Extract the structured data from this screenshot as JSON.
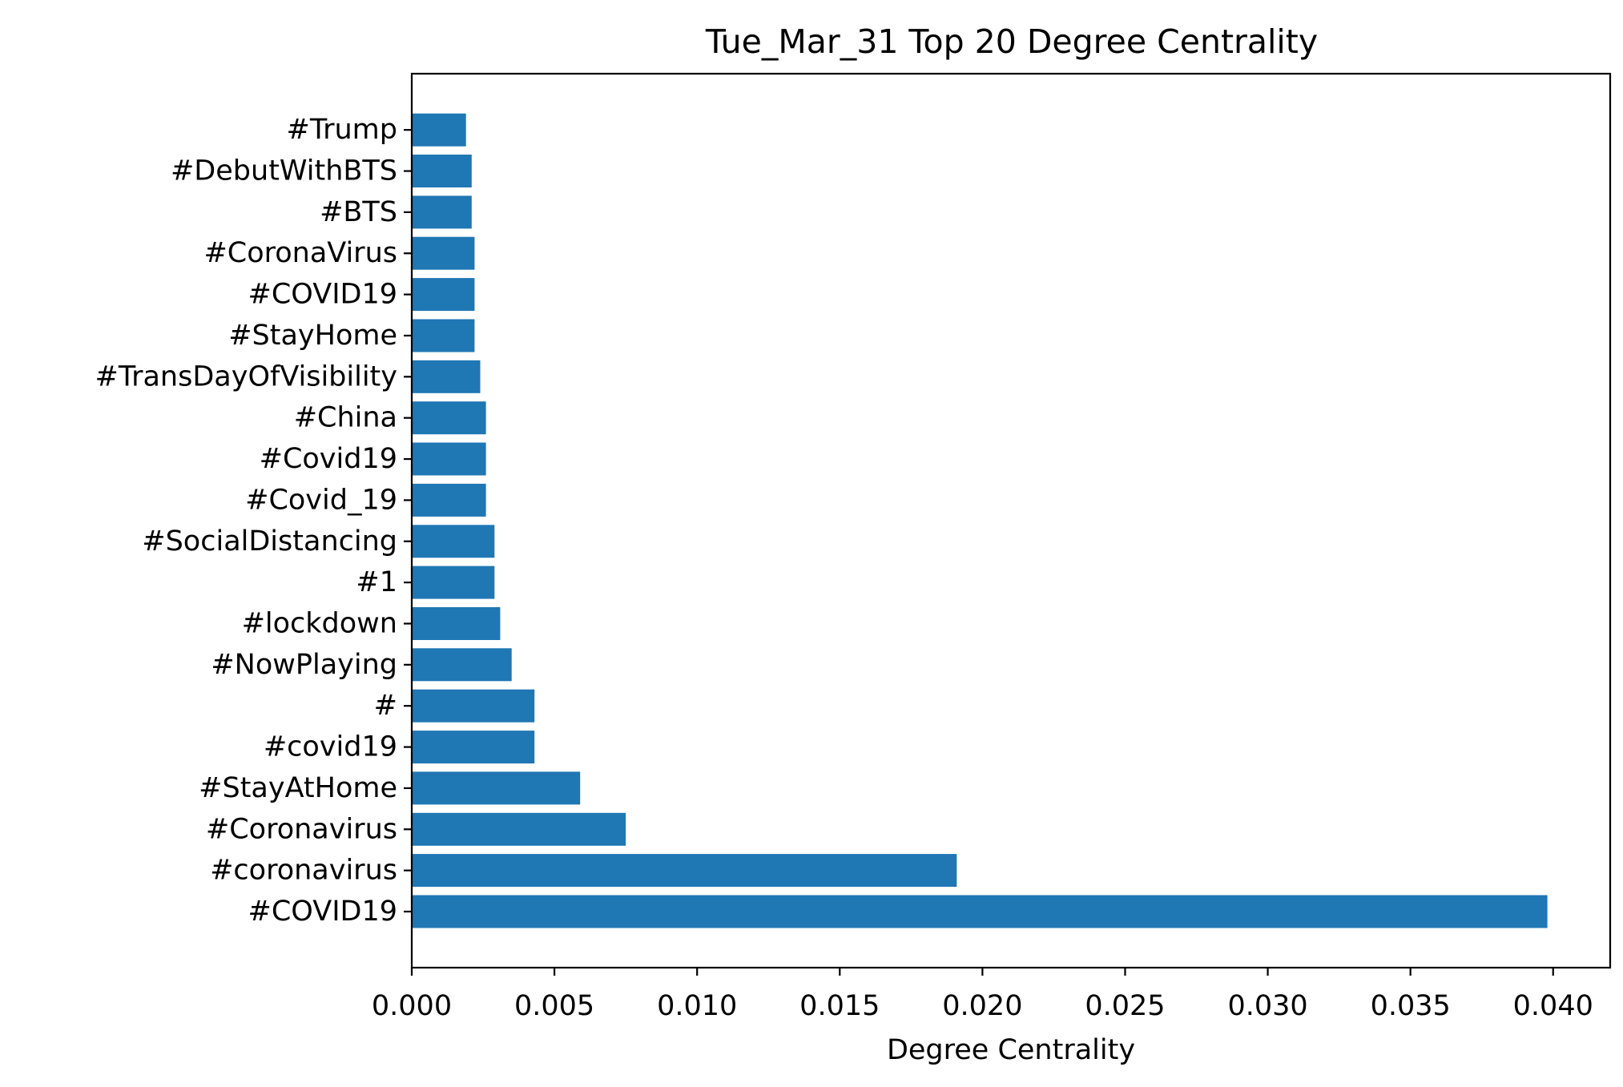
{
  "chart_data": {
    "type": "bar",
    "orientation": "horizontal",
    "title": "Tue_Mar_31 Top 20 Degree Centrality",
    "xlabel": "Degree Centrality",
    "ylabel": "",
    "xlim": [
      0.0,
      0.042
    ],
    "x_ticks": [
      "0.000",
      "0.005",
      "0.010",
      "0.015",
      "0.020",
      "0.025",
      "0.030",
      "0.035",
      "0.040"
    ],
    "x_tick_values": [
      0.0,
      0.005,
      0.01,
      0.015,
      0.02,
      0.025,
      0.03,
      0.035,
      0.04
    ],
    "categories": [
      "#COVID19",
      "#coronavirus",
      "#Coronavirus",
      "#StayAtHome",
      "#covid19",
      "#",
      "#NowPlaying",
      "#lockdown",
      "#1",
      "#SocialDistancing",
      "#Covid_19",
      "#Covid19",
      "#China",
      "#TransDayOfVisibility",
      "#StayHome",
      "#COVID\u001f19",
      "#CoronaVirus",
      "#BTS",
      "#DebutWithBTS",
      "#Trump"
    ],
    "values": [
      0.0398,
      0.0191,
      0.0075,
      0.0059,
      0.0043,
      0.0043,
      0.0035,
      0.0031,
      0.0029,
      0.0029,
      0.0026,
      0.0026,
      0.0026,
      0.0024,
      0.0022,
      0.0022,
      0.0022,
      0.0021,
      0.0021,
      0.0019
    ],
    "bar_color": "#1f77b4",
    "grid": false,
    "legend": "none"
  }
}
